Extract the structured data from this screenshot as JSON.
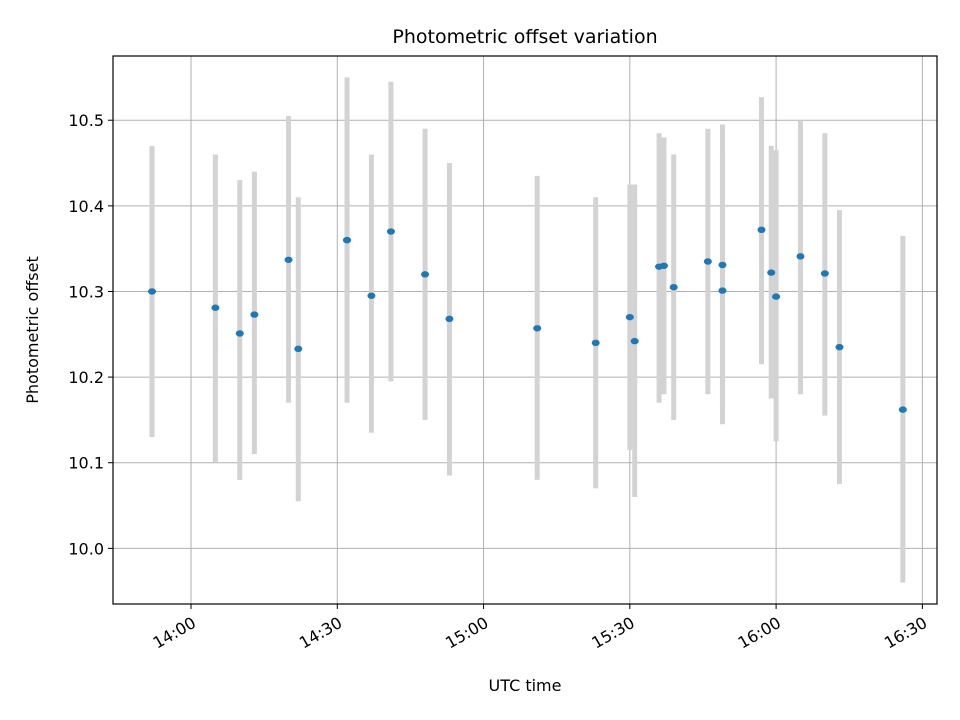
{
  "chart_data": {
    "type": "scatter",
    "title": "Photometric offset variation",
    "xlabel": "UTC time",
    "ylabel": "Photometric offset",
    "x_axis_type": "time",
    "xlim": [
      "13:44",
      "16:33"
    ],
    "ylim": [
      9.935,
      10.575
    ],
    "xticks": [
      "14:00",
      "14:30",
      "15:00",
      "15:30",
      "16:00",
      "16:30"
    ],
    "yticks": [
      10.0,
      10.1,
      10.2,
      10.3,
      10.4,
      10.5
    ],
    "ytick_labels": [
      "10.0",
      "10.1",
      "10.2",
      "10.3",
      "10.4",
      "10.5"
    ],
    "grid": true,
    "marker_color": "#1f77b4",
    "errorbar_color": "#d3d3d3",
    "points": [
      {
        "time": "13:52",
        "y": 10.3,
        "err_low": 10.13,
        "err_high": 10.47
      },
      {
        "time": "14:05",
        "y": 10.281,
        "err_low": 10.1,
        "err_high": 10.46
      },
      {
        "time": "14:10",
        "y": 10.251,
        "err_low": 10.08,
        "err_high": 10.43
      },
      {
        "time": "14:13",
        "y": 10.273,
        "err_low": 10.11,
        "err_high": 10.44
      },
      {
        "time": "14:20",
        "y": 10.337,
        "err_low": 10.17,
        "err_high": 10.505
      },
      {
        "time": "14:22",
        "y": 10.233,
        "err_low": 10.055,
        "err_high": 10.41
      },
      {
        "time": "14:32",
        "y": 10.36,
        "err_low": 10.17,
        "err_high": 10.55
      },
      {
        "time": "14:32",
        "y": 10.36,
        "err_low": 10.185,
        "err_high": 10.535
      },
      {
        "time": "14:37",
        "y": 10.295,
        "err_low": 10.135,
        "err_high": 10.46
      },
      {
        "time": "14:41",
        "y": 10.37,
        "err_low": 10.195,
        "err_high": 10.545
      },
      {
        "time": "14:48",
        "y": 10.32,
        "err_low": 10.15,
        "err_high": 10.49
      },
      {
        "time": "14:53",
        "y": 10.268,
        "err_low": 10.085,
        "err_high": 10.45
      },
      {
        "time": "15:11",
        "y": 10.257,
        "err_low": 10.08,
        "err_high": 10.435
      },
      {
        "time": "15:23",
        "y": 10.24,
        "err_low": 10.07,
        "err_high": 10.41
      },
      {
        "time": "15:30",
        "y": 10.27,
        "err_low": 10.115,
        "err_high": 10.425
      },
      {
        "time": "15:31",
        "y": 10.242,
        "err_low": 10.06,
        "err_high": 10.425
      },
      {
        "time": "15:36",
        "y": 10.329,
        "err_low": 10.17,
        "err_high": 10.485
      },
      {
        "time": "15:37",
        "y": 10.33,
        "err_low": 10.18,
        "err_high": 10.48
      },
      {
        "time": "15:39",
        "y": 10.305,
        "err_low": 10.15,
        "err_high": 10.46
      },
      {
        "time": "15:46",
        "y": 10.335,
        "err_low": 10.18,
        "err_high": 10.49
      },
      {
        "time": "15:49",
        "y": 10.301,
        "err_low": 10.145,
        "err_high": 10.46
      },
      {
        "time": "15:49",
        "y": 10.331,
        "err_low": 10.165,
        "err_high": 10.495
      },
      {
        "time": "15:57",
        "y": 10.372,
        "err_low": 10.215,
        "err_high": 10.527
      },
      {
        "time": "15:59",
        "y": 10.322,
        "err_low": 10.175,
        "err_high": 10.47
      },
      {
        "time": "16:00",
        "y": 10.294,
        "err_low": 10.125,
        "err_high": 10.465
      },
      {
        "time": "16:05",
        "y": 10.341,
        "err_low": 10.18,
        "err_high": 10.5
      },
      {
        "time": "16:10",
        "y": 10.321,
        "err_low": 10.155,
        "err_high": 10.485
      },
      {
        "time": "16:13",
        "y": 10.235,
        "err_low": 10.075,
        "err_high": 10.395
      },
      {
        "time": "16:26",
        "y": 10.162,
        "err_low": 9.96,
        "err_high": 10.365
      }
    ]
  }
}
